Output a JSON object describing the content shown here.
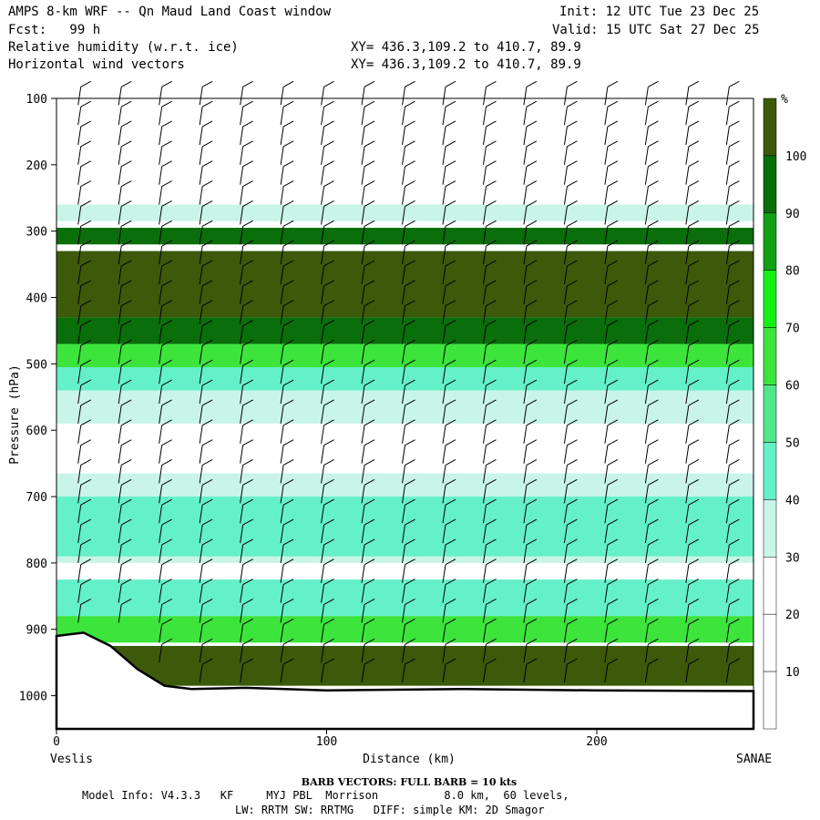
{
  "header": {
    "title": "AMPS 8-km WRF -- Qn Maud Land Coast window",
    "init": "Init: 12 UTC Tue 23 Dec 25",
    "fcst": "Fcst:   99 h",
    "valid": "Valid: 15 UTC Sat 27 Dec 25",
    "field1": "Relative humidity (w.r.t. ice)",
    "field2": "Horizontal wind vectors",
    "xy1": "XY= 436.3,109.2 to 410.7, 89.9",
    "xy2": "XY= 436.3,109.2 to 410.7, 89.9"
  },
  "footer": {
    "barb": "BARB VECTORS:  FULL BARB = 10 kts",
    "model": "Model Info: V4.3.3   KF     MYJ PBL  Morrison          8.0 km,  60 levels,",
    "model2": "LW: RRTM SW: RRTMG   DIFF: simple KM: 2D Smagor"
  },
  "chart_data": {
    "type": "heatmap",
    "xlabel": "Distance (km)",
    "ylabel": "Pressure (hPa)",
    "x_left_label": "Veslis",
    "x_right_label": "SANAE",
    "xlim": [
      0,
      258
    ],
    "ylim": [
      1050,
      100
    ],
    "x_ticks": [
      0,
      100,
      200
    ],
    "y_ticks": [
      100,
      200,
      300,
      400,
      500,
      600,
      700,
      800,
      900,
      1000
    ],
    "colorbar": {
      "unit": "%",
      "levels": [
        10,
        20,
        30,
        40,
        50,
        60,
        70,
        80,
        90,
        100
      ],
      "colors": [
        "#ffffff",
        "#ffffff",
        "#ffffff",
        "#c8f5e8",
        "#64f0c8",
        "#50e68c",
        "#3ce43c",
        "#14f014",
        "#14a014",
        "#0a6e0a",
        "#3c5a0a"
      ]
    },
    "humidity_bands": [
      {
        "range_pct": "30-40",
        "p_top": 260,
        "p_bottom": 285
      },
      {
        "range_pct": "90-100",
        "p_top": 295,
        "p_bottom": 320
      },
      {
        "range_pct": ">100",
        "p_top": 330,
        "p_bottom": 430
      },
      {
        "range_pct": "90-100",
        "p_top": 430,
        "p_bottom": 470
      },
      {
        "range_pct": "60-70",
        "p_top": 470,
        "p_bottom": 505
      },
      {
        "range_pct": "40-50",
        "p_top": 505,
        "p_bottom": 540
      },
      {
        "range_pct": "30-40",
        "p_top": 540,
        "p_bottom": 590
      },
      {
        "range_pct": "30-40",
        "p_top": 665,
        "p_bottom": 800
      },
      {
        "range_pct": "40-50",
        "p_top": 700,
        "p_bottom": 790
      },
      {
        "range_pct": "40-50",
        "p_top": 825,
        "p_bottom": 880
      },
      {
        "range_pct": "60-70",
        "p_top": 880,
        "p_bottom": 920
      },
      {
        "range_pct": ">100",
        "p_top": 925,
        "p_bottom": 985
      }
    ],
    "terrain": [
      {
        "x": 0,
        "p": 910
      },
      {
        "x": 10,
        "p": 905
      },
      {
        "x": 20,
        "p": 925
      },
      {
        "x": 30,
        "p": 960
      },
      {
        "x": 40,
        "p": 985
      },
      {
        "x": 50,
        "p": 990
      },
      {
        "x": 70,
        "p": 988
      },
      {
        "x": 100,
        "p": 992
      },
      {
        "x": 150,
        "p": 990
      },
      {
        "x": 200,
        "p": 992
      },
      {
        "x": 258,
        "p": 993
      }
    ]
  }
}
